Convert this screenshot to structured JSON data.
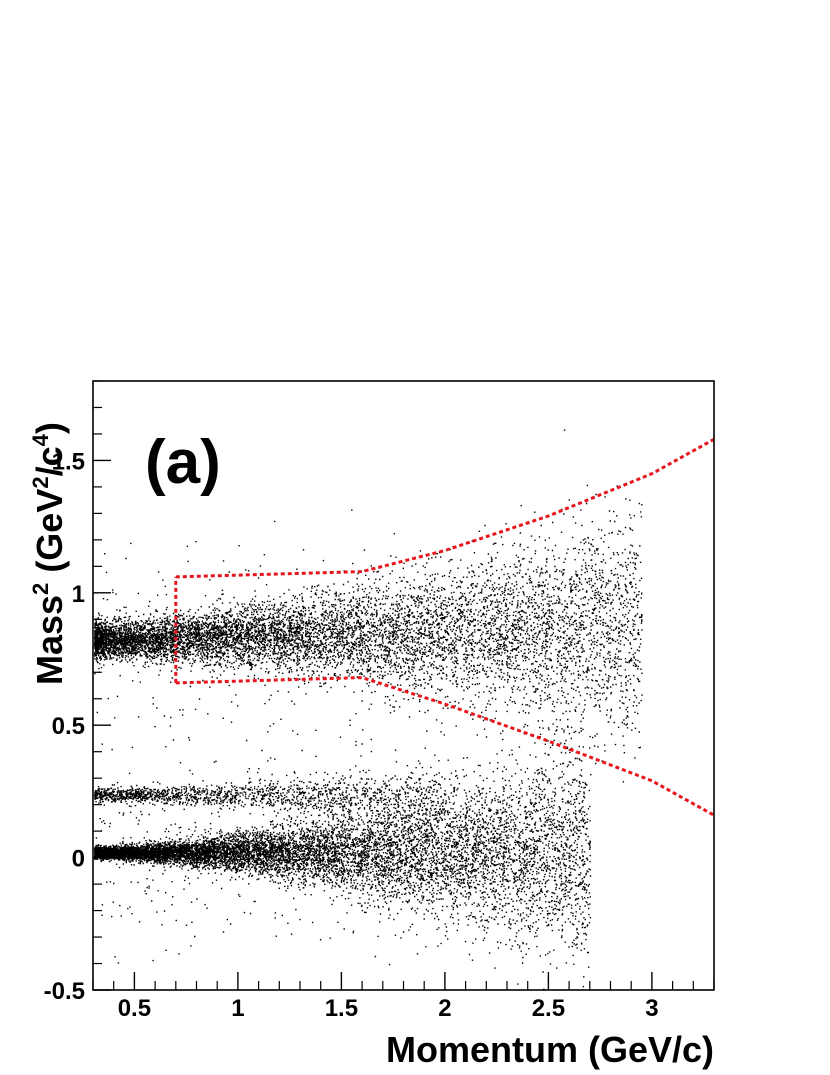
{
  "chart_data": {
    "type": "scatter",
    "panel_label": "(a)",
    "xlabel": "Momentum (GeV/c)",
    "ylabel": {
      "base": "Mass",
      "exp": "2",
      "unit_open": " (GeV",
      "unit_exp1": "2",
      "unit_mid": "/c",
      "unit_exp2": "4",
      "unit_close": ")"
    },
    "xlim": [
      0.3,
      3.3
    ],
    "ylim": [
      -0.5,
      1.8
    ],
    "x_ticks": [
      {
        "value": 0.5,
        "label": "0.5"
      },
      {
        "value": 1,
        "label": "1"
      },
      {
        "value": 1.5,
        "label": "1.5"
      },
      {
        "value": 2,
        "label": "2"
      },
      {
        "value": 2.5,
        "label": "2.5"
      },
      {
        "value": 3,
        "label": "3"
      }
    ],
    "y_ticks": [
      {
        "value": -0.5,
        "label": "-0.5"
      },
      {
        "value": 0,
        "label": "0"
      },
      {
        "value": 0.5,
        "label": "0.5"
      },
      {
        "value": 1,
        "label": "1"
      },
      {
        "value": 1.5,
        "label": "1.5"
      }
    ],
    "grid": false,
    "point_color": "#000000",
    "cut_color": "#e8141c",
    "bands": [
      {
        "name": "",
        "center_start": 0.82,
        "center_slope": 0.02,
        "x_range": [
          0.3,
          2.95
        ],
        "spread_start": 0.035,
        "spread_growth": 0.035,
        "count": 9000
      },
      {
        "name": "",
        "center_start": 0.24,
        "center_slope": -0.005,
        "x_range": [
          0.3,
          2.0
        ],
        "spread_start": 0.012,
        "spread_growth": 0.02,
        "count": 1600
      },
      {
        "name": "",
        "center_start": 0.02,
        "center_slope": 0.0,
        "x_range": [
          0.3,
          2.7
        ],
        "spread_start": 0.01,
        "spread_growth": 0.045,
        "count": 11000
      }
    ],
    "cut_upper": [
      [
        0.7,
        1.06
      ],
      [
        1.6,
        1.08
      ],
      [
        2.0,
        1.16
      ],
      [
        2.5,
        1.29
      ],
      [
        3.0,
        1.45
      ],
      [
        3.3,
        1.58
      ]
    ],
    "cut_lower": [
      [
        0.7,
        0.66
      ],
      [
        1.6,
        0.68
      ],
      [
        2.0,
        0.58
      ],
      [
        2.5,
        0.44
      ],
      [
        3.0,
        0.29
      ],
      [
        3.3,
        0.16
      ]
    ],
    "cut_left": [
      [
        0.7,
        0.66
      ],
      [
        0.7,
        1.06
      ]
    ]
  }
}
